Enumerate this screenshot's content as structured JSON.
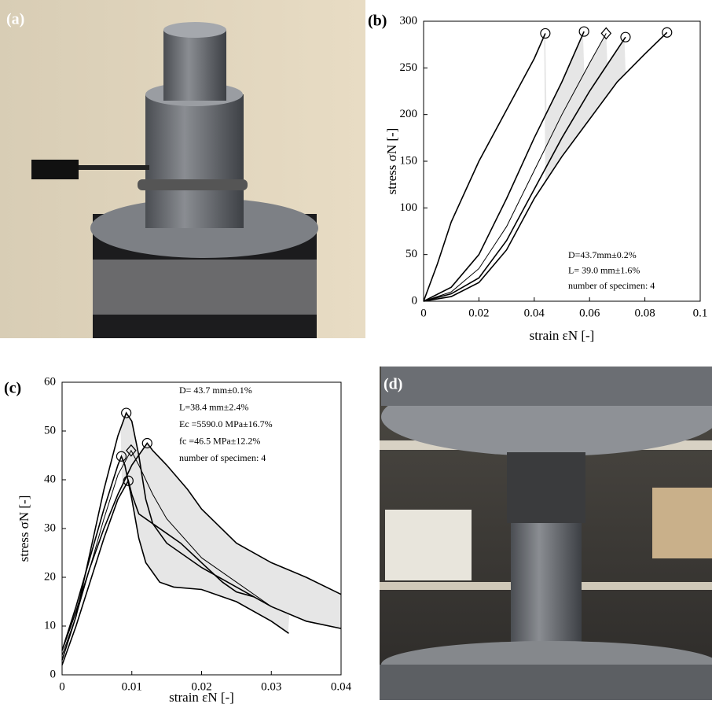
{
  "photos": [
    {
      "label": "(a)"
    },
    {
      "label": "(d)"
    }
  ],
  "chart_data": [
    {
      "type": "line",
      "panel_label": "(b)",
      "x_label": "strain εN [-]",
      "y_label": "stress σN [-]",
      "xlim": [
        0,
        0.1
      ],
      "xticks": [
        0,
        0.02,
        0.04,
        0.06,
        0.08,
        0.1
      ],
      "ylim": [
        0,
        300
      ],
      "yticks": [
        0,
        50,
        100,
        150,
        200,
        250,
        300
      ],
      "envelope": true,
      "envelope_color": "#e6e6e6",
      "annotations": [
        "D=43.7mm±0.2%",
        "L= 39.0 mm±1.6%",
        "number of specimen: 4"
      ],
      "series": [
        {
          "color": "#000",
          "marker": "circle",
          "x": [
            0,
            0.005,
            0.01,
            0.02,
            0.03,
            0.04,
            0.044
          ],
          "values": [
            0,
            40,
            85,
            150,
            205,
            260,
            287
          ]
        },
        {
          "color": "#000",
          "marker": "circle",
          "x": [
            0,
            0.01,
            0.02,
            0.03,
            0.04,
            0.05,
            0.058
          ],
          "values": [
            0,
            15,
            50,
            110,
            175,
            235,
            289
          ]
        },
        {
          "color": "#000",
          "marker": "diamond",
          "x": [
            0,
            0.01,
            0.02,
            0.03,
            0.04,
            0.05,
            0.06,
            0.066
          ],
          "values": [
            0,
            10,
            35,
            80,
            140,
            200,
            255,
            287
          ]
        },
        {
          "color": "#000",
          "marker": "circle",
          "x": [
            0,
            0.01,
            0.02,
            0.03,
            0.04,
            0.05,
            0.06,
            0.073
          ],
          "values": [
            0,
            8,
            25,
            65,
            120,
            175,
            225,
            283
          ]
        },
        {
          "color": "#000",
          "marker": "circle",
          "x": [
            0,
            0.01,
            0.02,
            0.03,
            0.04,
            0.05,
            0.06,
            0.07,
            0.08,
            0.088
          ],
          "values": [
            0,
            5,
            20,
            55,
            110,
            155,
            195,
            235,
            265,
            288
          ]
        }
      ]
    },
    {
      "type": "line",
      "panel_label": "(c)",
      "x_label": "strain εN [-]",
      "y_label": "stress σN [-]",
      "xlim": [
        0,
        0.04
      ],
      "xticks": [
        0,
        0.01,
        0.02,
        0.03,
        0.04
      ],
      "ylim": [
        0,
        60
      ],
      "yticks": [
        0,
        10,
        20,
        30,
        40,
        50,
        60
      ],
      "envelope": true,
      "envelope_color": "#e6e6e6",
      "annotations": [
        "D= 43.7 mm±0.1%",
        "L=38.4 mm±2.4%",
        "Ec =5590.0 MPa±16.7%",
        "fc =46.5 MPa±12.2%",
        "number of specimen: 4"
      ],
      "series": [
        {
          "color": "#000",
          "marker": "circle",
          "x": [
            0,
            0.002,
            0.004,
            0.006,
            0.008,
            0.0092,
            0.01,
            0.011,
            0.012,
            0.013,
            0.015,
            0.02,
            0.025,
            0.03,
            0.035,
            0.04
          ],
          "values": [
            3,
            12,
            25,
            38,
            49,
            53.7,
            52,
            45,
            36,
            31,
            27,
            22,
            18,
            14,
            11,
            9.5
          ]
        },
        {
          "color": "#000",
          "marker": "circle",
          "x": [
            0,
            0.002,
            0.004,
            0.006,
            0.008,
            0.0085,
            0.009,
            0.01,
            0.011,
            0.012,
            0.014,
            0.016,
            0.02,
            0.025,
            0.03,
            0.032,
            0.0325
          ],
          "values": [
            5,
            14,
            24,
            34,
            43,
            44.8,
            43,
            36,
            28,
            23,
            19,
            18,
            17.5,
            15,
            11,
            9,
            8.5
          ]
        },
        {
          "color": "#000",
          "marker": "circle",
          "x": [
            0,
            0.002,
            0.004,
            0.006,
            0.008,
            0.0095,
            0.01,
            0.011,
            0.013,
            0.015,
            0.017,
            0.02,
            0.023,
            0.025,
            0.0275
          ],
          "values": [
            2,
            10,
            19,
            28,
            36,
            39.8,
            37,
            33,
            31,
            29,
            27,
            23,
            19,
            17,
            16
          ]
        },
        {
          "color": "#000",
          "marker": "circle",
          "x": [
            0,
            0.002,
            0.004,
            0.006,
            0.008,
            0.01,
            0.0122,
            0.013,
            0.015,
            0.018,
            0.02,
            0.025,
            0.03,
            0.035,
            0.04
          ],
          "values": [
            5,
            13,
            22,
            30,
            37,
            43,
            47.5,
            46,
            43,
            38,
            34,
            27,
            23,
            20,
            16.5
          ]
        },
        {
          "color": "#000",
          "marker": "diamond",
          "x": [
            0,
            0.002,
            0.004,
            0.006,
            0.008,
            0.0099,
            0.011,
            0.013,
            0.015,
            0.02,
            0.025,
            0.03,
            0.035,
            0.04
          ],
          "values": [
            4,
            12,
            22,
            32,
            41,
            46,
            43,
            37,
            32,
            24,
            19,
            14,
            11,
            9.5
          ]
        }
      ]
    }
  ]
}
